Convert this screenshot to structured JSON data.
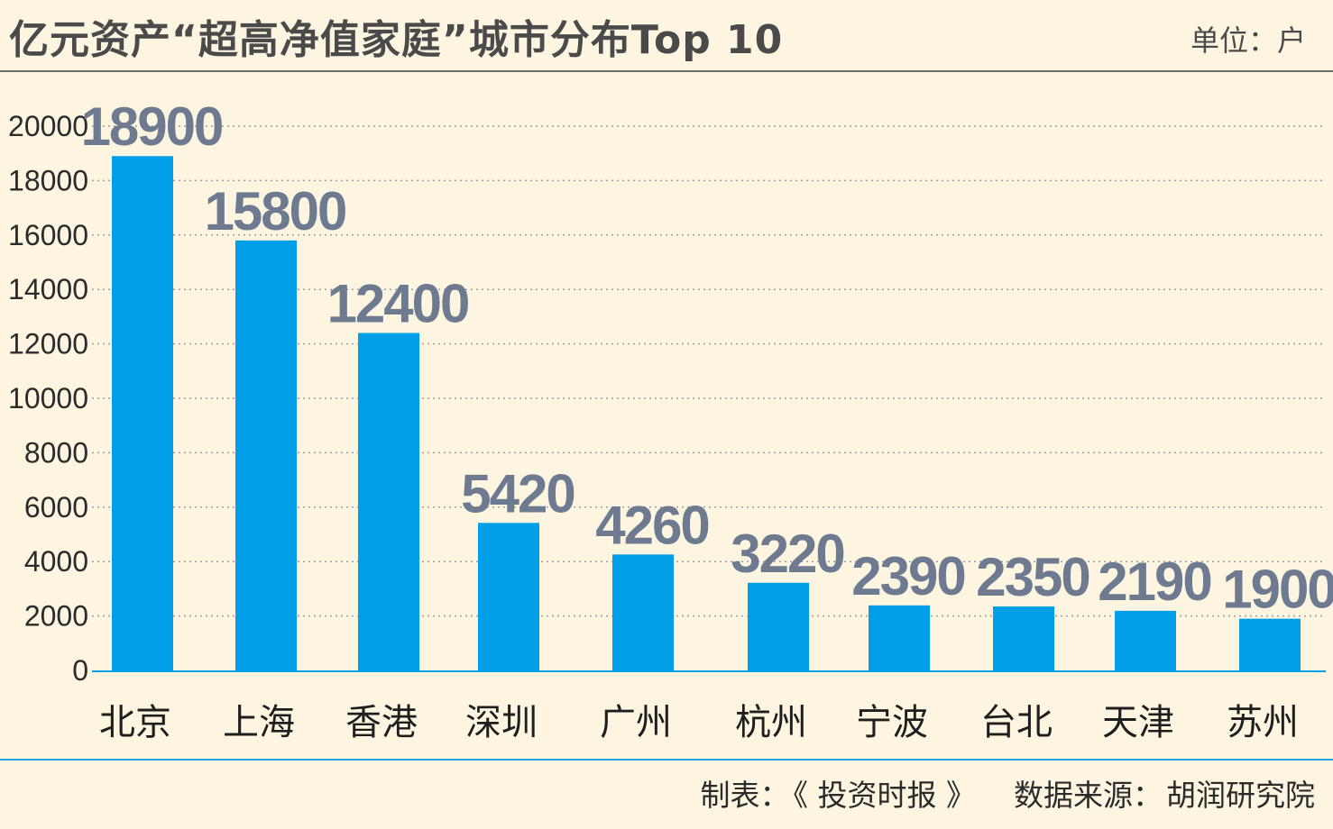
{
  "header": {
    "title": "亿元资产“超高净值家庭”城市分布Top 10",
    "unit": "单位：户"
  },
  "footer": {
    "maker_label": "制表：",
    "maker": "《 投资时报 》",
    "source_label": "数据来源：",
    "source": "胡润研究院"
  },
  "colors": {
    "bar": "#009fe8",
    "value_label": "#6d7a8f",
    "grid": "#9aa0a8",
    "background": "#fdf5e0"
  },
  "chart_data": {
    "type": "bar",
    "title": "亿元资产“超高净值家庭”城市分布Top 10",
    "ylabel": "单位：户",
    "xlabel": "",
    "categories": [
      "北京",
      "上海",
      "香港",
      "深圳",
      "广州",
      "杭州",
      "宁波",
      "台北",
      "天津",
      "苏州"
    ],
    "values": [
      18900,
      15800,
      12400,
      5420,
      4260,
      3220,
      2390,
      2350,
      2190,
      1900
    ],
    "yticks": [
      0,
      2000,
      4000,
      6000,
      8000,
      10000,
      12000,
      14000,
      16000,
      18000,
      20000
    ],
    "ylim": [
      0,
      20000
    ],
    "grid": true,
    "grid_style": "dotted",
    "legend": "none"
  }
}
